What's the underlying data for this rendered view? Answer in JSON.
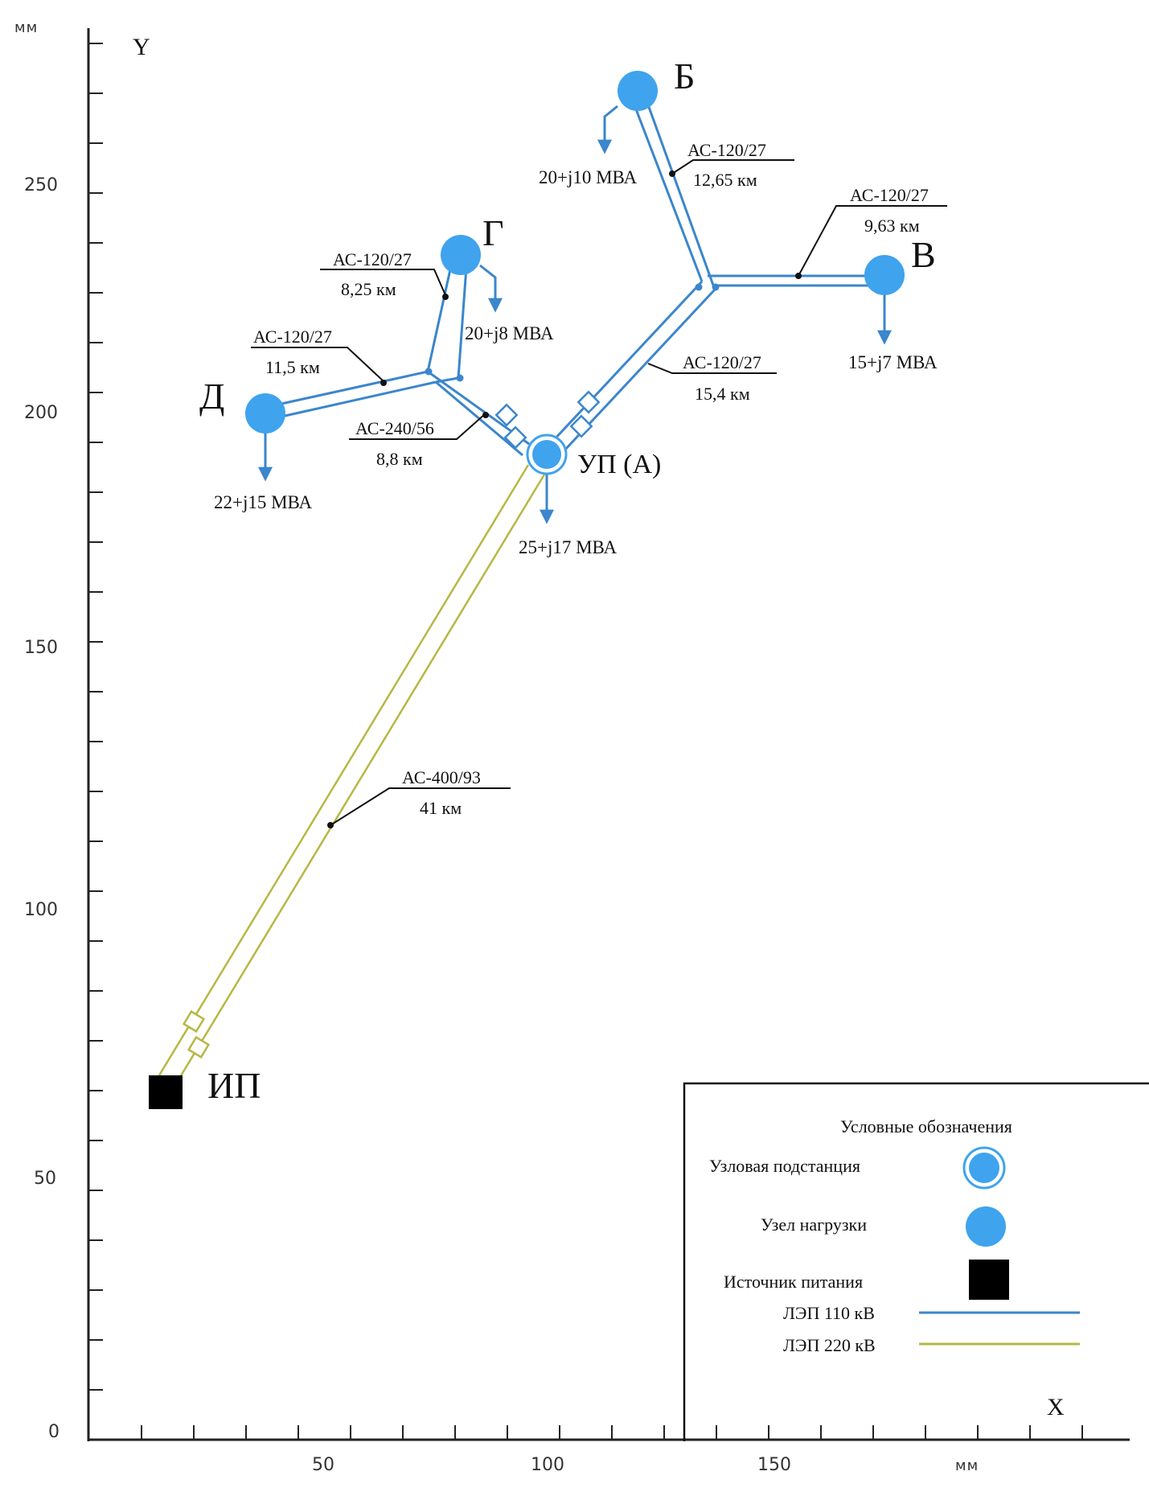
{
  "axes": {
    "y_unit": "мм",
    "x_unit": "мм",
    "y_letter": "Y",
    "x_letter": "X",
    "y_ticks": [
      "250",
      "200",
      "150",
      "100",
      "50",
      "0"
    ],
    "x_ticks": [
      "50",
      "100",
      "150"
    ]
  },
  "nodes": {
    "b": {
      "name": "Б",
      "load": "20+j10 МВА"
    },
    "v": {
      "name": "В",
      "load": "15+j7 МВА"
    },
    "g": {
      "name": "Г",
      "load": "20+j8 МВА"
    },
    "d": {
      "name": "Д",
      "load": "22+j15 МВА"
    },
    "a": {
      "name": "УП (А)",
      "load": "25+j17 МВА"
    },
    "ip": {
      "name": "ИП"
    }
  },
  "lines": {
    "ab": {
      "wire": "АС-120/27",
      "length": "12,65 км"
    },
    "av": {
      "wire": "АС-120/27",
      "length": "9,63 км"
    },
    "ag_upper": {
      "wire": "АС-120/27",
      "length": "8,25 км"
    },
    "ad": {
      "wire": "АС-120/27",
      "length": "11,5 км"
    },
    "a_branch_right": {
      "wire": "АС-120/27",
      "length": "15,4 км"
    },
    "a_branch_left": {
      "wire": "АС-240/56",
      "length": "8,8 км"
    },
    "ip_a": {
      "wire": "АС-400/93",
      "length": "41 км"
    }
  },
  "legend": {
    "title": "Условные обозначения",
    "items": [
      {
        "label": "Узловая подстанция",
        "symbol": "hub"
      },
      {
        "label": "Узел нагрузки",
        "symbol": "load"
      },
      {
        "label": "Источник питания",
        "symbol": "source"
      },
      {
        "label": "ЛЭП 110 кВ",
        "symbol": "line-110"
      },
      {
        "label": "ЛЭП 220 кВ",
        "symbol": "line-220"
      }
    ]
  },
  "colors": {
    "node_fill": "#3fa3ee",
    "line_110": "#3b86cc",
    "line_220": "#b7b744",
    "source": "#000000"
  }
}
